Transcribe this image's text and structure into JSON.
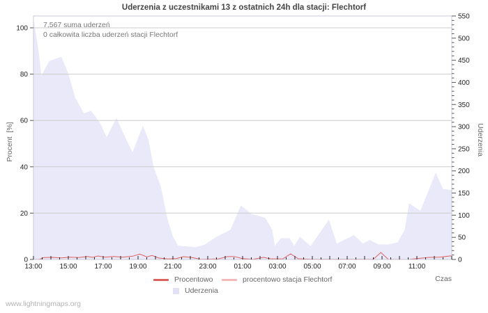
{
  "title": "Uderzenia z uczestnikami 13 z ostatnich 24h dla stacji: Flechtorf",
  "annotations": {
    "sum": "7,567 suma uderzeń",
    "station_total": "0 całkowita liczba uderzeń stacji Flechtorf"
  },
  "watermark": "www.lightningmaps.org",
  "colors": {
    "area_fill": "#e9e9f9",
    "legend_area_swatch": "#e2e2f6",
    "line_procentowo": "#dd6060",
    "line_station": "#f5b8b8",
    "grid": "#cccccc",
    "frame": "#c9c9d9",
    "tick_mark": "#555555",
    "x_tick_mark": "#222222",
    "tick_text": "#222222"
  },
  "axes": {
    "left": {
      "label": "Procent  [%]",
      "ticks": [
        0,
        20,
        40,
        60,
        80,
        100
      ],
      "range": [
        0,
        100
      ]
    },
    "right": {
      "label": "Uderzenia",
      "ticks": [
        0,
        50,
        100,
        150,
        200,
        250,
        300,
        350,
        400,
        450,
        500,
        550
      ],
      "minor_step": 10,
      "range": [
        0,
        550
      ]
    },
    "x": {
      "label": "Czas",
      "range_hours": [
        0,
        24
      ],
      "start_time": "13:00",
      "tick_labels": [
        "13:00",
        "15:00",
        "17:00",
        "19:00",
        "21:00",
        "23:00",
        "01:00",
        "03:00",
        "05:00",
        "07:00",
        "09:00",
        "11:00"
      ],
      "label_step_hours": 2,
      "major_step_hours": 1,
      "minor_step_hours": 0.5
    }
  },
  "legend": {
    "procentowo": "Procentowo",
    "station": "procentowo stacja Flechtorf",
    "uderzenia": "Uderzenia"
  },
  "chart_data": {
    "type": "area+line combo",
    "x_unit": "hours after 13:00",
    "series": [
      {
        "name": "Uderzenia",
        "type": "area",
        "axis": "right",
        "color_key": "area_fill",
        "points": [
          [
            0,
            544
          ],
          [
            0.3,
            470
          ],
          [
            0.45,
            415
          ],
          [
            0.9,
            448
          ],
          [
            1.6,
            458
          ],
          [
            2.0,
            420
          ],
          [
            2.4,
            365
          ],
          [
            2.9,
            330
          ],
          [
            3.3,
            336
          ],
          [
            3.8,
            310
          ],
          [
            4.2,
            276
          ],
          [
            4.76,
            320
          ],
          [
            5.1,
            290
          ],
          [
            5.68,
            242
          ],
          [
            6.28,
            302
          ],
          [
            6.6,
            270
          ],
          [
            6.9,
            208
          ],
          [
            7.3,
            166
          ],
          [
            7.7,
            90
          ],
          [
            8.0,
            52
          ],
          [
            8.3,
            31
          ],
          [
            8.9,
            29
          ],
          [
            9.3,
            28
          ],
          [
            9.8,
            33
          ],
          [
            10.5,
            51
          ],
          [
            11.3,
            67
          ],
          [
            11.9,
            122
          ],
          [
            12.5,
            103
          ],
          [
            13.3,
            94
          ],
          [
            13.7,
            67
          ],
          [
            13.85,
            31
          ],
          [
            14.2,
            48
          ],
          [
            14.7,
            48
          ],
          [
            14.95,
            31
          ],
          [
            15.3,
            51
          ],
          [
            15.9,
            30
          ],
          [
            16.95,
            90
          ],
          [
            17.4,
            36
          ],
          [
            18.4,
            55
          ],
          [
            18.9,
            36
          ],
          [
            19.3,
            44
          ],
          [
            19.8,
            34
          ],
          [
            20.4,
            34
          ],
          [
            20.9,
            39
          ],
          [
            21.3,
            67
          ],
          [
            21.55,
            127
          ],
          [
            22.2,
            110
          ],
          [
            23.08,
            196
          ],
          [
            23.5,
            159
          ],
          [
            24,
            157
          ]
        ]
      },
      {
        "name": "Procentowo",
        "type": "line",
        "axis": "left",
        "color_key": "line_procentowo",
        "points": [
          [
            0,
            0
          ],
          [
            0.35,
            0.1
          ],
          [
            0.6,
            0.8
          ],
          [
            1.1,
            0.9
          ],
          [
            1.6,
            0.7
          ],
          [
            2.1,
            1.0
          ],
          [
            2.6,
            0.8
          ],
          [
            3.1,
            1.3
          ],
          [
            3.4,
            0.9
          ],
          [
            3.7,
            1.5
          ],
          [
            4.1,
            1.0
          ],
          [
            4.6,
            1.3
          ],
          [
            5.1,
            1.0
          ],
          [
            5.7,
            1.4
          ],
          [
            6.1,
            2.3
          ],
          [
            6.5,
            1.1
          ],
          [
            6.8,
            1.7
          ],
          [
            7.2,
            0.6
          ],
          [
            7.7,
            0.2
          ],
          [
            8.2,
            0.4
          ],
          [
            8.6,
            1.2
          ],
          [
            9.1,
            0.8
          ],
          [
            9.6,
            0.1
          ],
          [
            10.6,
            0.2
          ],
          [
            11.1,
            1.2
          ],
          [
            11.5,
            1.3
          ],
          [
            12.0,
            0.4
          ],
          [
            12.6,
            0.1
          ],
          [
            13.2,
            0.9
          ],
          [
            13.6,
            0.3
          ],
          [
            14.3,
            0.2
          ],
          [
            14.75,
            2.4
          ],
          [
            15.2,
            0.3
          ],
          [
            16.0,
            0.1
          ],
          [
            19.5,
            0.1
          ],
          [
            19.93,
            3.0
          ],
          [
            20.35,
            0.1
          ],
          [
            21.5,
            0
          ],
          [
            22.7,
            0.9
          ],
          [
            23.3,
            1.0
          ],
          [
            24,
            1.6
          ]
        ]
      },
      {
        "name": "procentowo stacja Flechtorf",
        "type": "line",
        "axis": "left",
        "color_key": "line_station",
        "points": [
          [
            0,
            0
          ],
          [
            24,
            0
          ]
        ]
      }
    ]
  }
}
